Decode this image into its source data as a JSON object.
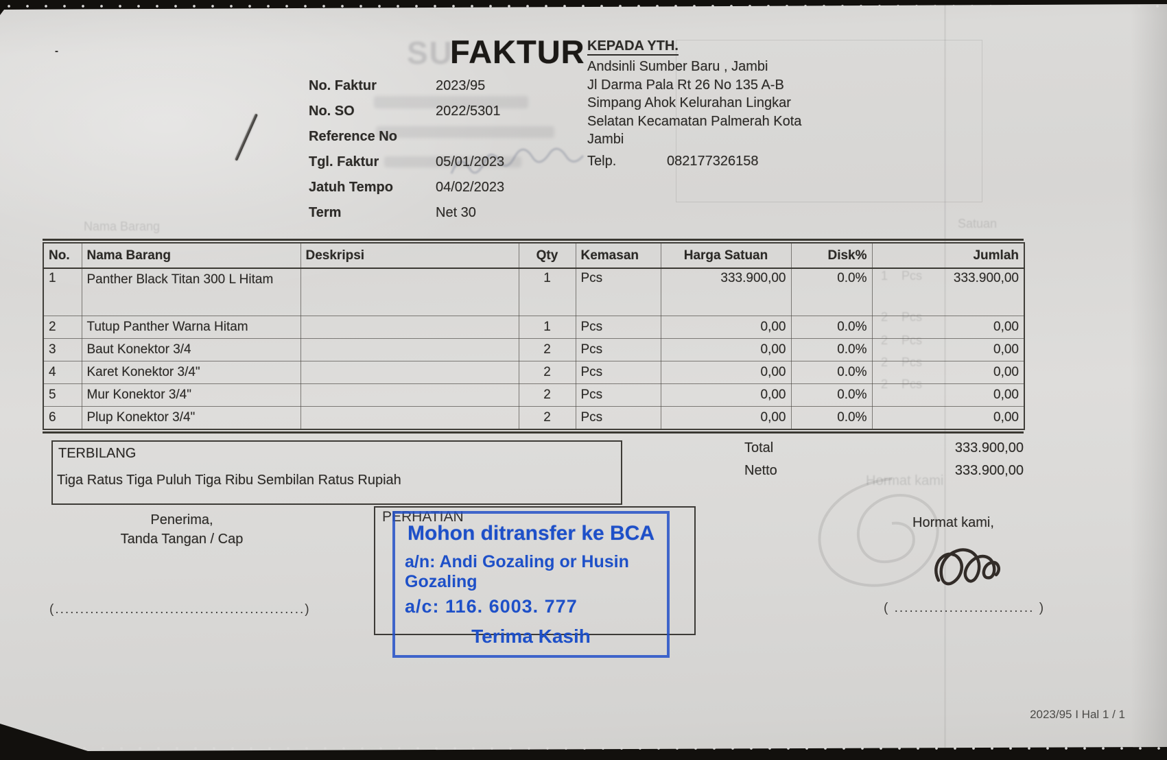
{
  "document": {
    "title": "FAKTUR",
    "stray_mark": "-",
    "meta": {
      "fields": [
        {
          "label": "No. Faktur",
          "value": "2023/95"
        },
        {
          "label": "No. SO",
          "value": "2022/5301"
        },
        {
          "label": "Reference No",
          "value": ""
        },
        {
          "label": "Tgl. Faktur",
          "value": "05/01/2023"
        },
        {
          "label": "Jatuh Tempo",
          "value": "04/02/2023"
        },
        {
          "label": "Term",
          "value": "Net 30"
        }
      ]
    },
    "recipient": {
      "heading": "KEPADA YTH.",
      "lines": [
        "Andsinli Sumber Baru , Jambi",
        "Jl Darma Pala Rt 26 No 135 A-B",
        "Simpang Ahok Kelurahan Lingkar",
        "Selatan Kecamatan Palmerah Kota",
        "Jambi"
      ],
      "telp_label": "Telp.",
      "telp_value": "082177326158"
    },
    "table": {
      "headers": [
        "No.",
        "Nama Barang",
        "Deskripsi",
        "Qty",
        "Kemasan",
        "Harga Satuan",
        "Disk%",
        "Jumlah"
      ],
      "rows": [
        [
          "1",
          "Panther Black Titan 300 L\nHitam",
          "",
          "1",
          "Pcs",
          "333.900,00",
          "0.0%",
          "333.900,00"
        ],
        [
          "2",
          "Tutup Panther Warna Hitam",
          "",
          "1",
          "Pcs",
          "0,00",
          "0.0%",
          "0,00"
        ],
        [
          "3",
          "Baut Konektor 3/4",
          "",
          "2",
          "Pcs",
          "0,00",
          "0.0%",
          "0,00"
        ],
        [
          "4",
          "Karet Konektor 3/4\"",
          "",
          "2",
          "Pcs",
          "0,00",
          "0.0%",
          "0,00"
        ],
        [
          "5",
          "Mur Konektor 3/4\"",
          "",
          "2",
          "Pcs",
          "0,00",
          "0.0%",
          "0,00"
        ],
        [
          "6",
          "Plup Konektor 3/4\"",
          "",
          "2",
          "Pcs",
          "0,00",
          "0.0%",
          "0,00"
        ]
      ]
    },
    "terbilang": {
      "label": "TERBILANG",
      "text": "Tiga Ratus Tiga Puluh Tiga Ribu Sembilan Ratus Rupiah"
    },
    "totals": [
      {
        "label": "Total",
        "value": "333.900,00"
      },
      {
        "label": "Netto",
        "value": "333.900,00"
      }
    ],
    "signature_left": {
      "line1": "Penerima,",
      "line2": "Tanda Tangan / Cap",
      "placeholder": "(..................................................)"
    },
    "attention": {
      "label": "PERHATIAN",
      "stamp_line1": "Mohon ditransfer ke BCA",
      "stamp_line2": "a/n: Andi Gozaling or Husin Gozaling",
      "stamp_line3": "a/c: 116. 6003. 777",
      "stamp_line4": "Terima Kasih",
      "stamp_color": "#1e50c8"
    },
    "signature_right": {
      "heading": "Hormat kami,",
      "placeholder": "( ............................ )"
    },
    "footer": {
      "page_info": "2023/95 I Hal 1 / 1"
    },
    "ghost": {
      "watermark": "SU",
      "table_header_1": "Nama Barang",
      "table_header_2": "Satuan",
      "rows": [
        "1    Pcs",
        "2    Pcs",
        "2    Pcs",
        "2    Pcs",
        "2    Pcs"
      ],
      "hormat_kami": "Hormat kami"
    }
  }
}
